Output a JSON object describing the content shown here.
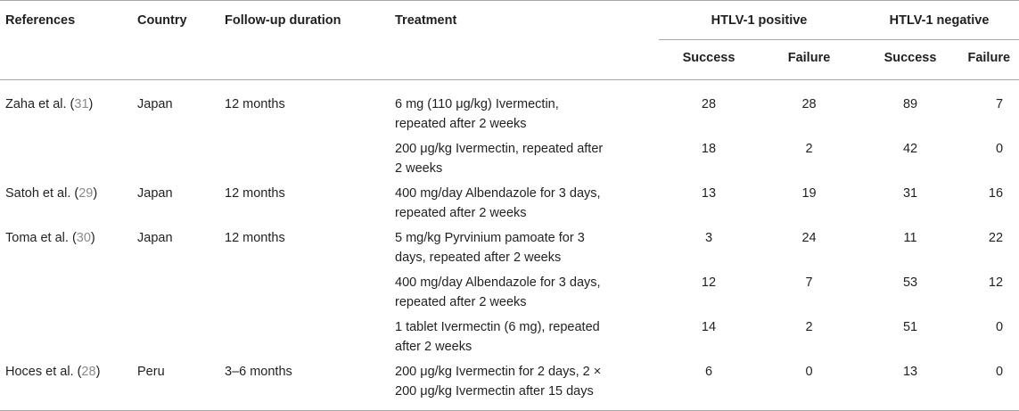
{
  "headers": {
    "references": "References",
    "country": "Country",
    "follow_up": "Follow-up duration",
    "treatment": "Treatment",
    "htlv_positive": "HTLV-1 positive",
    "htlv_negative": "HTLV-1 negative",
    "success": "Success",
    "failure": "Failure"
  },
  "rows": [
    {
      "reference": "Zaha et al. (",
      "cite": "31",
      "close": ")",
      "country": "Japan",
      "follow_up": "12 months",
      "treatment_line1": "6 mg (110 μg/kg) Ivermectin,",
      "treatment_line2": "repeated after 2 weeks",
      "pos_success": "28",
      "pos_failure": "28",
      "neg_success": "89",
      "neg_failure": "7"
    },
    {
      "reference": "",
      "cite": "",
      "close": "",
      "country": "",
      "follow_up": "",
      "treatment_line1": "200 μg/kg Ivermectin, repeated after",
      "treatment_line2": "2 weeks",
      "pos_success": "18",
      "pos_failure": "2",
      "neg_success": "42",
      "neg_failure": "0"
    },
    {
      "reference": "Satoh et al. (",
      "cite": "29",
      "close": ")",
      "country": "Japan",
      "follow_up": "12 months",
      "treatment_line1": "400 mg/day Albendazole for 3 days,",
      "treatment_line2": "repeated after 2 weeks",
      "pos_success": "13",
      "pos_failure": "19",
      "neg_success": "31",
      "neg_failure": "16"
    },
    {
      "reference": "Toma et al. (",
      "cite": "30",
      "close": ")",
      "country": "Japan",
      "follow_up": "12 months",
      "treatment_line1": "5 mg/kg Pyrvinium pamoate for 3",
      "treatment_line2": "days, repeated after 2 weeks",
      "pos_success": "3",
      "pos_failure": "24",
      "neg_success": "11",
      "neg_failure": "22"
    },
    {
      "reference": "",
      "cite": "",
      "close": "",
      "country": "",
      "follow_up": "",
      "treatment_line1": "400 mg/day Albendazole for 3 days,",
      "treatment_line2": "repeated after 2 weeks",
      "pos_success": "12",
      "pos_failure": "7",
      "neg_success": "53",
      "neg_failure": "12"
    },
    {
      "reference": "",
      "cite": "",
      "close": "",
      "country": "",
      "follow_up": "",
      "treatment_line1": "1 tablet Ivermectin (6 mg), repeated",
      "treatment_line2": "after 2 weeks",
      "pos_success": "14",
      "pos_failure": "2",
      "neg_success": "51",
      "neg_failure": "0"
    },
    {
      "reference": "Hoces et al. (",
      "cite": "28",
      "close": ")",
      "country": "Peru",
      "follow_up": "3–6 months",
      "treatment_line1": "200 μg/kg Ivermectin for 2 days, 2 ×",
      "treatment_line2": "200 μg/kg Ivermectin after 15 days",
      "pos_success": "6",
      "pos_failure": "0",
      "neg_success": "13",
      "neg_failure": "0"
    }
  ]
}
